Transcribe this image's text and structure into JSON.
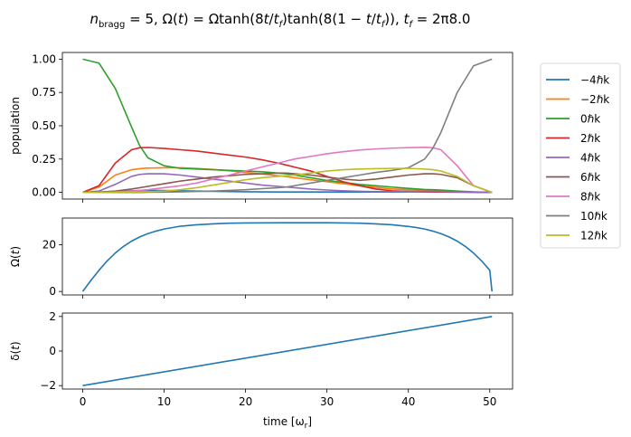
{
  "title": "n_bragg = 5, Ω(t) = Ωtanh(8t/t_f)tanh(8(1 − t/t_f)), t_f = 2π8.0",
  "colors": {
    "-4": "#1f77b4",
    "-2": "#ff7f0e",
    "0": "#2ca02c",
    "2": "#d62728",
    "4": "#9467bd",
    "6": "#8c564b",
    "8": "#e377c2",
    "10": "#7f7f7f",
    "12": "#bcbd22"
  },
  "chart_data": [
    {
      "type": "line",
      "ylabel": "population",
      "ylim": [
        -0.05,
        1.05
      ],
      "xlim": [
        -2.5,
        52.8
      ],
      "yticks": [
        "0.00",
        "0.25",
        "0.50",
        "0.75",
        "1.00"
      ],
      "ytick_values": [
        0,
        0.25,
        0.5,
        0.75,
        1.0
      ],
      "legend_position": "outside right",
      "x": [
        0,
        2,
        4,
        6,
        7,
        8,
        10,
        12,
        14,
        16,
        18,
        20,
        22,
        24,
        25,
        26,
        28,
        30,
        32,
        34,
        36,
        38,
        40,
        42,
        43,
        44,
        46,
        48,
        50.27
      ],
      "series": [
        {
          "name": "−4ℏk",
          "key": "-4",
          "values": [
            0,
            0.002,
            0.008,
            0.012,
            0.014,
            0.015,
            0.014,
            0.012,
            0.01,
            0.008,
            0.006,
            0.005,
            0.004,
            0.003,
            0.003,
            0.003,
            0.003,
            0.003,
            0.003,
            0.003,
            0.003,
            0.003,
            0.004,
            0.004,
            0.004,
            0.003,
            0.002,
            0.001,
            0
          ]
        },
        {
          "name": "−2ℏk",
          "key": "-2",
          "values": [
            0,
            0.04,
            0.13,
            0.17,
            0.178,
            0.182,
            0.185,
            0.185,
            0.18,
            0.172,
            0.162,
            0.15,
            0.138,
            0.125,
            0.118,
            0.11,
            0.095,
            0.08,
            0.065,
            0.05,
            0.037,
            0.026,
            0.02,
            0.014,
            0.012,
            0.01,
            0.006,
            0.002,
            0
          ]
        },
        {
          "name": "0ℏk",
          "key": "0",
          "values": [
            1.0,
            0.97,
            0.78,
            0.49,
            0.35,
            0.26,
            0.2,
            0.18,
            0.175,
            0.17,
            0.165,
            0.16,
            0.155,
            0.145,
            0.14,
            0.13,
            0.11,
            0.09,
            0.075,
            0.06,
            0.05,
            0.04,
            0.03,
            0.022,
            0.02,
            0.018,
            0.01,
            0.004,
            0
          ]
        },
        {
          "name": "2ℏk",
          "key": "2",
          "values": [
            0,
            0.05,
            0.22,
            0.32,
            0.335,
            0.337,
            0.33,
            0.32,
            0.31,
            0.295,
            0.28,
            0.265,
            0.245,
            0.22,
            0.205,
            0.19,
            0.16,
            0.12,
            0.08,
            0.05,
            0.025,
            0.012,
            0.007,
            0.005,
            0.004,
            0.003,
            0.002,
            0.001,
            0
          ]
        },
        {
          "name": "4ℏk",
          "key": "4",
          "values": [
            0,
            0.01,
            0.06,
            0.12,
            0.135,
            0.14,
            0.14,
            0.13,
            0.115,
            0.1,
            0.085,
            0.07,
            0.055,
            0.045,
            0.04,
            0.035,
            0.025,
            0.018,
            0.012,
            0.008,
            0.006,
            0.006,
            0.007,
            0.008,
            0.008,
            0.007,
            0.004,
            0.002,
            0
          ]
        },
        {
          "name": "6ℏk",
          "key": "6",
          "values": [
            0,
            0.002,
            0.01,
            0.025,
            0.035,
            0.045,
            0.065,
            0.085,
            0.1,
            0.115,
            0.125,
            0.135,
            0.14,
            0.145,
            0.145,
            0.14,
            0.13,
            0.115,
            0.1,
            0.09,
            0.1,
            0.115,
            0.13,
            0.14,
            0.14,
            0.135,
            0.11,
            0.05,
            0
          ]
        },
        {
          "name": "8ℏk",
          "key": "8",
          "values": [
            0,
            0.001,
            0.004,
            0.01,
            0.015,
            0.02,
            0.035,
            0.05,
            0.07,
            0.1,
            0.13,
            0.16,
            0.19,
            0.22,
            0.235,
            0.25,
            0.27,
            0.29,
            0.305,
            0.318,
            0.326,
            0.332,
            0.336,
            0.338,
            0.335,
            0.32,
            0.2,
            0.05,
            0
          ]
        },
        {
          "name": "10ℏk",
          "key": "10",
          "values": [
            0,
            0,
            0,
            0,
            0,
            0.001,
            0.002,
            0.004,
            0.007,
            0.01,
            0.015,
            0.02,
            0.028,
            0.035,
            0.04,
            0.05,
            0.07,
            0.09,
            0.11,
            0.13,
            0.15,
            0.165,
            0.185,
            0.25,
            0.33,
            0.45,
            0.75,
            0.95,
            1.0
          ]
        },
        {
          "name": "12ℏk",
          "key": "12",
          "values": [
            0,
            0,
            0.001,
            0.002,
            0.003,
            0.005,
            0.01,
            0.02,
            0.035,
            0.055,
            0.075,
            0.095,
            0.11,
            0.12,
            0.125,
            0.13,
            0.145,
            0.16,
            0.17,
            0.175,
            0.178,
            0.18,
            0.18,
            0.175,
            0.17,
            0.16,
            0.12,
            0.05,
            0
          ]
        }
      ]
    },
    {
      "type": "line",
      "ylabel": "Ω(t)",
      "ylim": [
        -1.5,
        31.5
      ],
      "xlim": [
        -2.5,
        52.8
      ],
      "yticks": [
        "0",
        "20"
      ],
      "ytick_values": [
        0,
        20
      ],
      "x": [
        0,
        1,
        2,
        3,
        4,
        5,
        6,
        7,
        8,
        9,
        10,
        12,
        14,
        16,
        18,
        20,
        25,
        30,
        32,
        34,
        36,
        38,
        40,
        41,
        42,
        43,
        44,
        45,
        46,
        47,
        48,
        49,
        50,
        50.27
      ],
      "series": [
        {
          "name": "",
          "values": [
            0,
            4.7,
            9.1,
            13.1,
            16.5,
            19.3,
            21.6,
            23.4,
            24.8,
            25.9,
            26.8,
            28.0,
            28.6,
            29.0,
            29.3,
            29.4,
            29.5,
            29.5,
            29.4,
            29.3,
            29.0,
            28.6,
            27.9,
            27.4,
            26.8,
            25.9,
            24.8,
            23.4,
            21.6,
            19.3,
            16.5,
            13.1,
            9.1,
            0
          ]
        }
      ]
    },
    {
      "type": "line",
      "ylabel": "δ(t)",
      "xlabel": "time [ω_r]",
      "ylim": [
        -2.2,
        2.2
      ],
      "xlim": [
        -2.5,
        52.8
      ],
      "yticks": [
        "−2",
        "0",
        "2"
      ],
      "ytick_values": [
        -2,
        0,
        2
      ],
      "xticks": [
        "0",
        "10",
        "20",
        "30",
        "40",
        "50"
      ],
      "xtick_values": [
        0,
        10,
        20,
        30,
        40,
        50
      ],
      "x": [
        0,
        50.27
      ],
      "series": [
        {
          "name": "",
          "values": [
            -2,
            2
          ]
        }
      ]
    }
  ]
}
